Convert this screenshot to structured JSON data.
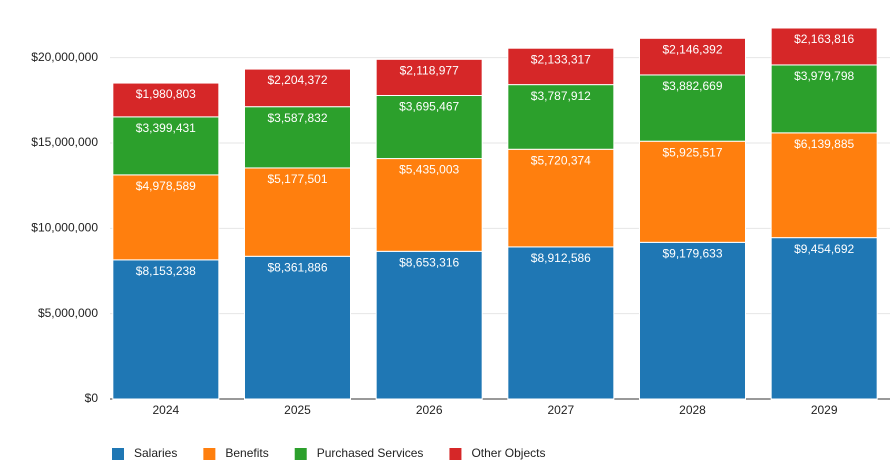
{
  "chart_data": {
    "type": "stacked_bar",
    "categories": [
      "2024",
      "2025",
      "2026",
      "2027",
      "2028",
      "2029"
    ],
    "series": [
      {
        "name": "Salaries",
        "color": "#1f77b4",
        "values": [
          8153238,
          8361886,
          8653316,
          8912586,
          9179633,
          9454692
        ],
        "value_labels": [
          "$8,153,238",
          "$8,361,886",
          "$8,653,316",
          "$8,912,586",
          "$9,179,633",
          "$9,454,692"
        ]
      },
      {
        "name": "Benefits",
        "color": "#ff7f0e",
        "values": [
          4978589,
          5177501,
          5435003,
          5720374,
          5925517,
          6139885
        ],
        "value_labels": [
          "$4,978,589",
          "$5,177,501",
          "$5,435,003",
          "$5,720,374",
          "$5,925,517",
          "$6,139,885"
        ]
      },
      {
        "name": "Purchased Services",
        "color": "#2ca02c",
        "values": [
          3399431,
          3587832,
          3695467,
          3787912,
          3882669,
          3979798
        ],
        "value_labels": [
          "$3,399,431",
          "$3,587,832",
          "$3,695,467",
          "$3,787,912",
          "$3,882,669",
          "$3,979,798"
        ]
      },
      {
        "name": "Other Objects",
        "color": "#d62728",
        "values": [
          1980803,
          2204372,
          2118977,
          2133317,
          2146392,
          2163816
        ],
        "value_labels": [
          "$1,980,803",
          "$2,204,372",
          "$2,118,977",
          "$2,133,317",
          "$2,146,392",
          "$2,163,816"
        ]
      }
    ],
    "ylim": [
      0,
      22500000
    ],
    "yticks": [
      {
        "value": 0,
        "label": "$0"
      },
      {
        "value": 5000000,
        "label": "$5,000,000"
      },
      {
        "value": 10000000,
        "label": "$10,000,000"
      },
      {
        "value": 15000000,
        "label": "$15,000,000"
      },
      {
        "value": 20000000,
        "label": "$20,000,000"
      }
    ],
    "grid": true,
    "legend": "bottom"
  }
}
